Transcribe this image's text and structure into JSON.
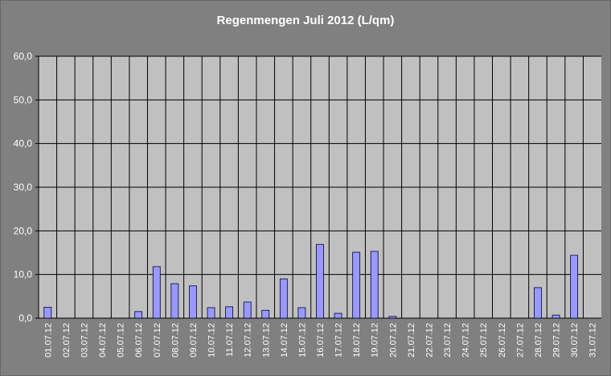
{
  "chart_data": {
    "type": "bar",
    "title": "Regenmengen Juli 2012 (L/qm)",
    "categories": [
      "01.07.12",
      "02.07.12",
      "03.07.12",
      "04.07.12",
      "05.07.12",
      "06.07.12",
      "07.07.12",
      "08.07.12",
      "09.07.12",
      "10.07.12",
      "11.07.12",
      "12.07.12",
      "13.07.12",
      "14.07.12",
      "15.07.12",
      "16.07.12",
      "17.07.12",
      "18.07.12",
      "19.07.12",
      "20.07.12",
      "21.07.12",
      "22.07.12",
      "23.07.12",
      "24.07.12",
      "25.07.12",
      "26.07.12",
      "27.07.12",
      "28.07.12",
      "29.07.12",
      "30.07.12",
      "31.07.12"
    ],
    "values": [
      2.5,
      0,
      0,
      0,
      0,
      1.5,
      11.8,
      7.9,
      7.4,
      2.4,
      2.6,
      3.7,
      1.8,
      9.0,
      2.4,
      16.9,
      1.1,
      15.1,
      15.3,
      0.4,
      0,
      0,
      0,
      0,
      0,
      0,
      0,
      7.0,
      0.7,
      14.4,
      0
    ],
    "color": "#9999ff",
    "ylim": [
      0,
      60
    ],
    "yticks": [
      {
        "value": 0,
        "label": "0,0"
      },
      {
        "value": 10,
        "label": "10,0"
      },
      {
        "value": 20,
        "label": "20,0"
      },
      {
        "value": 30,
        "label": "30,0"
      },
      {
        "value": 40,
        "label": "40,0"
      },
      {
        "value": 50,
        "label": "50,0"
      },
      {
        "value": 60,
        "label": "60,0"
      }
    ],
    "grid": true
  }
}
